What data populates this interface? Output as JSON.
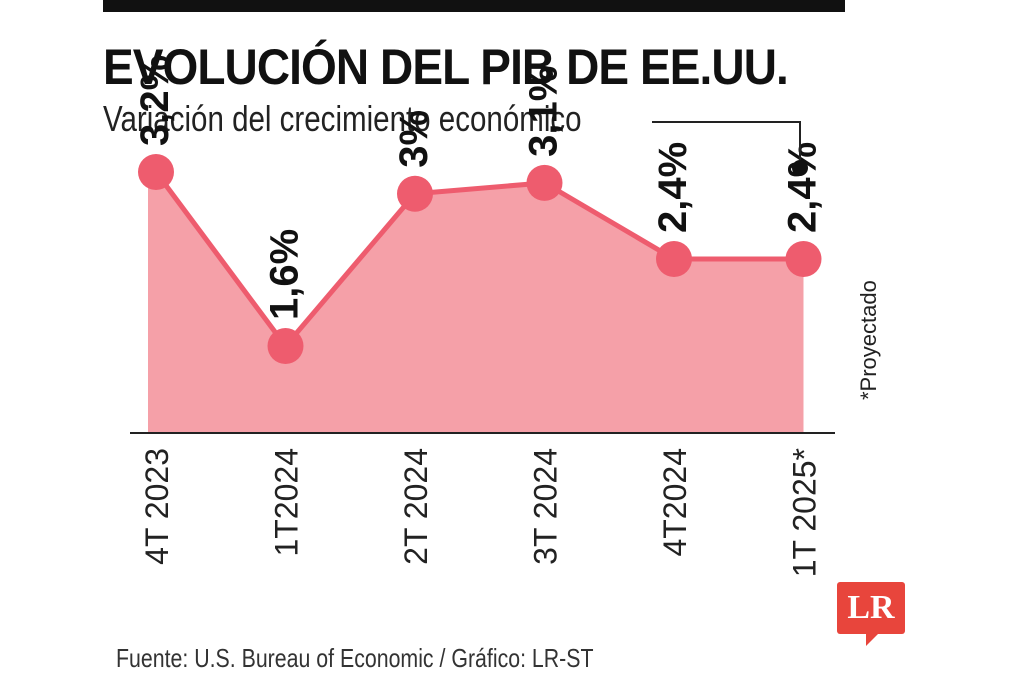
{
  "header": {
    "title": "EVOLUCIÓN DEL PIB DE EE.UU.",
    "subtitle": "Variación del crecimiento económico"
  },
  "chart_data": {
    "type": "area",
    "title": "EVOLUCIÓN DEL PIB DE EE.UU.",
    "subtitle": "Variación del crecimiento económico",
    "categories": [
      "4T 2023",
      "1T2024",
      "2T 2024",
      "3T 2024",
      "4T2024",
      "1T 2025*"
    ],
    "values": [
      3.2,
      1.6,
      3.0,
      3.1,
      2.4,
      2.4
    ],
    "data_labels": [
      "3,2%",
      "1,6%",
      "3%",
      "3,1%",
      "2,4%",
      "2,4%"
    ],
    "unit": "%",
    "annotation": "*Proyectado",
    "colors": {
      "fill": "#f5a0a8",
      "line": "#ee5c6e",
      "marker": "#ee5c6e",
      "label": "#111111"
    },
    "grid": false,
    "legend": "none"
  },
  "footer": {
    "source": "Fuente: U.S. Bureau of Economic / Gráfico: LR-ST"
  },
  "logo": {
    "text": "LR",
    "color": "#e8453c"
  }
}
